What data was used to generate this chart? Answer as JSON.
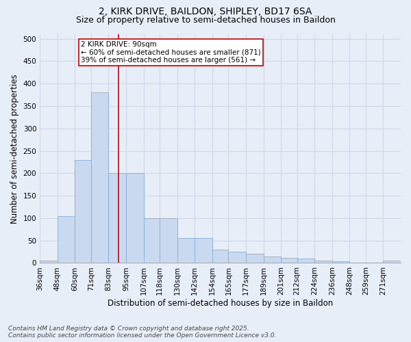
{
  "title_line1": "2, KIRK DRIVE, BAILDON, SHIPLEY, BD17 6SA",
  "title_line2": "Size of property relative to semi-detached houses in Baildon",
  "xlabel": "Distribution of semi-detached houses by size in Baildon",
  "ylabel": "Number of semi-detached properties",
  "footnote_line1": "Contains HM Land Registry data © Crown copyright and database right 2025.",
  "footnote_line2": "Contains public sector information licensed under the Open Government Licence v3.0.",
  "annotation_line1": "2 KIRK DRIVE: 90sqm",
  "annotation_line2": "← 60% of semi-detached houses are smaller (871)",
  "annotation_line3": "39% of semi-detached houses are larger (561) →",
  "bar_color": "#c8d9f0",
  "bar_edge_color": "#85aedb",
  "vline_color": "#cc0000",
  "vline_x": 90,
  "background_color": "#e8eef8",
  "annotation_box_color": "#ffffff",
  "annotation_box_edge_color": "#cc0000",
  "bins": [
    36,
    48,
    60,
    71,
    83,
    95,
    107,
    118,
    130,
    142,
    154,
    165,
    177,
    189,
    201,
    212,
    224,
    236,
    248,
    259,
    271
  ],
  "counts": [
    5,
    105,
    230,
    380,
    200,
    200,
    100,
    100,
    55,
    55,
    30,
    25,
    20,
    15,
    12,
    10,
    5,
    3,
    1,
    0,
    5
  ],
  "ylim": [
    0,
    510
  ],
  "yticks": [
    0,
    50,
    100,
    150,
    200,
    250,
    300,
    350,
    400,
    450,
    500
  ],
  "grid_color": "#d0d8e8",
  "title_fontsize": 10,
  "subtitle_fontsize": 9,
  "axis_label_fontsize": 8.5,
  "tick_fontsize": 7.5,
  "annotation_fontsize": 7.5,
  "footnote_fontsize": 6.5
}
